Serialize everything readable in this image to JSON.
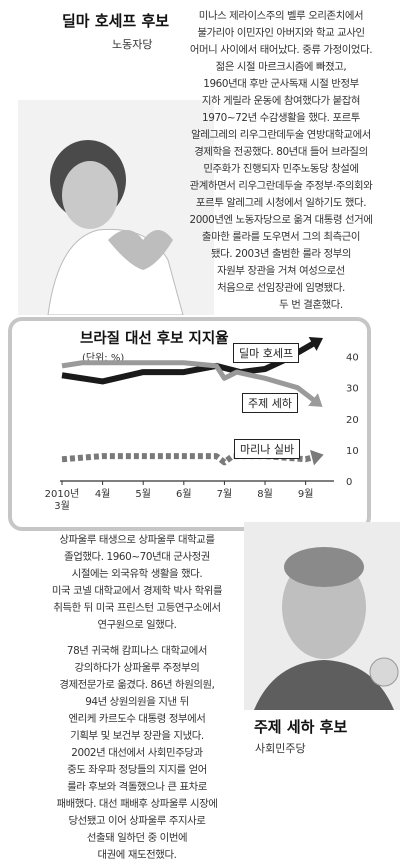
{
  "candidate1": {
    "name": "딜마 호세프 후보",
    "party": "노동자당",
    "bio": [
      "미나스 제라이스주의 벨루 오리존치에서",
      "불가리아 이민자인 아버지와 학교 교사인",
      "어머니 사이에서 태어났다. 중류 가정이었다.",
      "젊은 시절 마르크시즘에 빠졌고,",
      "1960년대 후반 군사독재 시절 반정부",
      "지하 게릴라 운동에 참여했다가 붙잡혀",
      "1970~72년 수감생활을 했다. 포르투",
      "알레그레의 리우그란데두술 연방대학교에서",
      "경제학을 전공했다. 80년대 들어 브라질의",
      "민주화가 진행되자 민주노동당 창설에",
      "관계하면서 리우그란데두술 주정부·주의회와",
      "포르투 알레그레 시청에서 일하기도 했다.",
      "2000년엔 노동자당으로 옮겨 대통령 선거에",
      "출마한 룰라를 도우면서 그의 최측근이",
      "됐다. 2003년 출범한 룰라 정부의",
      "자원부 장관을 거쳐 여성으로선",
      "처음으로 선임장관에 임명됐다.",
      "두 번 결혼했다."
    ]
  },
  "candidate2": {
    "name": "주제 세하 후보",
    "party": "사회민주당",
    "bio": [
      "상파울루 태생으로 상파울루 대학교를",
      "졸업했다. 1960~70년대 군사정권",
      "시절에는 외국유학 생활을 했다.",
      "미국 코넬 대학교에서 경제학 박사 학위를",
      "취득한 뒤 미국 프린스턴 고등연구소에서",
      "연구원으로 일했다.",
      "78년 귀국해 캄피나스 대학교에서",
      "강의하다가 상파울루 주정부의",
      "경제전문가로 옮겼다. 86년 하원의원,",
      "94년 상원의원을 지낸 뒤",
      "엔리케 카르도수 대통령 정부에서",
      "기획부 및 보건부 장관을 지냈다.",
      "2002년 대선에서 사회민주당과",
      "중도 좌우파 정당들의 지지를 얻어",
      "룰라 후보와 격돌했으나 큰 표차로",
      "패배했다. 대선 패배후 상파울루 시장에",
      "당선됐고 이어 상파울루 주지사로",
      "선출돼 일하던 중 이번에",
      "대권에 재도전했다."
    ]
  },
  "chart": {
    "title": "브라질 대선 후보 지지율",
    "unit": "(단위: %)",
    "colors": {
      "rousseff": "#1a1a1a",
      "serra": "#9a9a9a",
      "silva": "#7a7a7a"
    }
  },
  "chart_data": {
    "type": "line",
    "ylim": [
      0,
      45
    ],
    "yticks": [
      0,
      10,
      20,
      30,
      40
    ],
    "x_range": [
      0,
      6.6
    ],
    "xticks": [
      {
        "x": 0,
        "label": "2010년"
      },
      {
        "x": 1,
        "label": "4월"
      },
      {
        "x": 2,
        "label": "5월"
      },
      {
        "x": 3,
        "label": "6월"
      },
      {
        "x": 4,
        "label": "7월"
      },
      {
        "x": 5,
        "label": "8월"
      },
      {
        "x": 6,
        "label": "9월"
      }
    ],
    "xtick_sub": "3월",
    "grid": false,
    "series": [
      {
        "name": "딜마 호세프",
        "style": "solid",
        "x": [
          0,
          1,
          2,
          3,
          3.8,
          4.4,
          5,
          5.5,
          6.3
        ],
        "y": [
          34,
          32,
          35,
          35,
          37,
          35,
          36,
          39,
          45
        ]
      },
      {
        "name": "주제 세하",
        "style": "solid",
        "x": [
          0,
          0.5,
          1,
          2,
          3,
          3.8,
          4,
          4.3,
          5,
          5.8,
          6.3
        ],
        "y": [
          37,
          38,
          38,
          38,
          38,
          37,
          33,
          35,
          33,
          30,
          25
        ]
      },
      {
        "name": "마리나 실바",
        "style": "dashed",
        "x": [
          0,
          1,
          2,
          3,
          3.8,
          4,
          4.2,
          5,
          6,
          6.3
        ],
        "y": [
          7,
          8,
          8,
          8,
          8,
          6,
          8,
          8,
          7,
          8
        ]
      }
    ]
  }
}
